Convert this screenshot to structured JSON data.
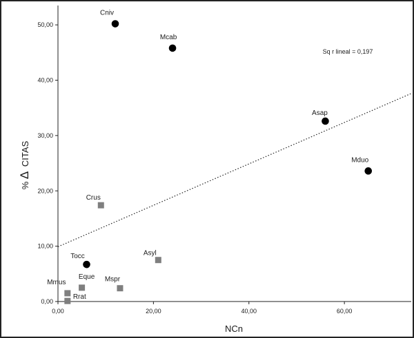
{
  "chart_data": {
    "type": "scatter",
    "xlabel": "NCn",
    "ylabel_prefix": "% ",
    "ylabel_symbol": "Δ",
    "ylabel_suffix": "CITAS",
    "xlim": [
      0,
      74
    ],
    "ylim": [
      0,
      53.5
    ],
    "xticks": [
      0,
      20,
      40,
      60
    ],
    "xtick_labels": [
      "0,00",
      "20,00",
      "40,00",
      "60,00"
    ],
    "yticks": [
      0,
      10,
      20,
      30,
      40,
      50
    ],
    "ytick_labels": [
      "0,00",
      "10,00",
      "20,00",
      "30,00",
      "40,00",
      "50,00"
    ],
    "grid": false,
    "series": [
      {
        "marker": "circle",
        "color": "#000000",
        "points": [
          {
            "label": "Cniv",
            "x": 12,
            "y": 50.2
          },
          {
            "label": "Mcab",
            "x": 24,
            "y": 45.8
          },
          {
            "label": "Asap",
            "x": 56,
            "y": 32.6
          },
          {
            "label": "Mduo",
            "x": 65,
            "y": 23.6
          },
          {
            "label": "Tocc",
            "x": 6,
            "y": 6.7
          }
        ]
      },
      {
        "marker": "square",
        "color": "#7f7f7f",
        "points": [
          {
            "label": "Crus",
            "x": 9,
            "y": 17.4
          },
          {
            "label": "Asyl",
            "x": 21,
            "y": 7.5
          },
          {
            "label": "Mmus",
            "x": 2,
            "y": 1.5
          },
          {
            "label": "Eque",
            "x": 5,
            "y": 2.5
          },
          {
            "label": "Mspr",
            "x": 13,
            "y": 2.4
          },
          {
            "label": "Rrat",
            "x": 2,
            "y": 0.1
          }
        ]
      }
    ],
    "fit_line": {
      "style": "dotted",
      "x0": 0,
      "y0": 9.9,
      "x1": 74,
      "y1": 37.6
    },
    "annotation": "Sq r lineal = 0,197"
  }
}
